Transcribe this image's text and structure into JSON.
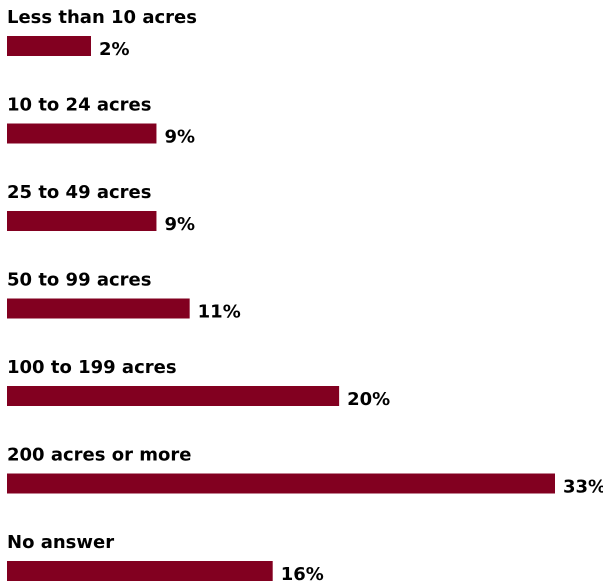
{
  "chart_data": {
    "type": "bar",
    "orientation": "horizontal",
    "categories": [
      "Less than 10 acres",
      "10 to 24 acres",
      "25 to 49 acres",
      "50 to 99 acres",
      "100 to 199 acres",
      "200 acres or more",
      "No answer"
    ],
    "values": [
      2,
      9,
      9,
      11,
      20,
      33,
      16
    ],
    "value_labels": [
      "2%",
      "9%",
      "9%",
      "11%",
      "20%",
      "33%",
      "16%"
    ],
    "unit": "%",
    "bar_color": "#820020",
    "title": "",
    "xlabel": "",
    "ylabel": "",
    "grid": false,
    "legend": "none"
  }
}
